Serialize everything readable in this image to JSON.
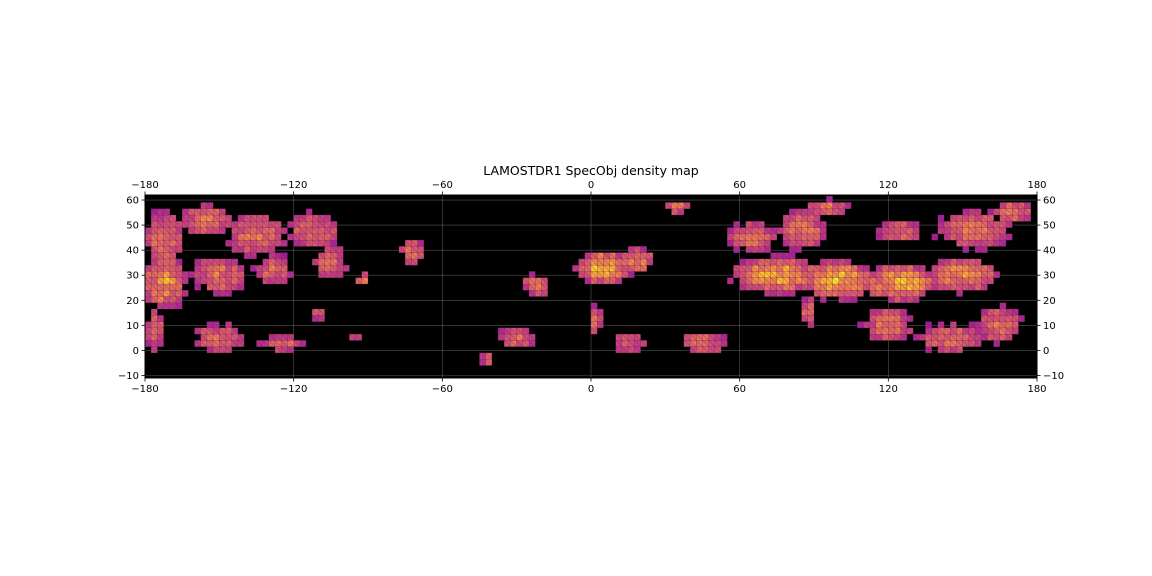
{
  "chart_data": {
    "type": "heatmap",
    "title": "LAMOSTDR1 SpecObj density map",
    "xlabel": "",
    "ylabel": "",
    "xlim": [
      -180,
      180
    ],
    "ylim": [
      -11,
      62
    ],
    "x_ticks": [
      -180,
      -120,
      -60,
      0,
      60,
      120,
      180
    ],
    "y_ticks": [
      -10,
      0,
      10,
      20,
      30,
      40,
      50,
      60
    ],
    "x_tick_labels": [
      "−180",
      "−120",
      "−60",
      "0",
      "60",
      "120",
      "180"
    ],
    "y_tick_labels": [
      "−10",
      "0",
      "10",
      "20",
      "30",
      "40",
      "50",
      "60"
    ],
    "grid": true,
    "background_color": "#000000",
    "colormap": "plasma",
    "colormap_stops": [
      "#5b02a3",
      "#9c179e",
      "#cc4778",
      "#ed7953",
      "#fdb42f",
      "#f0f921"
    ],
    "cell_size": 2.5,
    "regions": [
      {
        "x": -172,
        "y": 45,
        "dx": 10,
        "dy": 14,
        "level": 0.62
      },
      {
        "x": -155,
        "y": 52,
        "dx": 14,
        "dy": 8,
        "level": 0.6
      },
      {
        "x": -135,
        "y": 46,
        "dx": 16,
        "dy": 12,
        "level": 0.6
      },
      {
        "x": -112,
        "y": 48,
        "dx": 14,
        "dy": 10,
        "level": 0.58
      },
      {
        "x": -172,
        "y": 27,
        "dx": 10,
        "dy": 12,
        "level": 0.75
      },
      {
        "x": -150,
        "y": 30,
        "dx": 14,
        "dy": 10,
        "level": 0.6
      },
      {
        "x": -128,
        "y": 32,
        "dx": 10,
        "dy": 8,
        "level": 0.58
      },
      {
        "x": -105,
        "y": 35,
        "dx": 10,
        "dy": 10,
        "level": 0.55
      },
      {
        "x": -92,
        "y": 28,
        "dx": 4,
        "dy": 4,
        "level": 0.55
      },
      {
        "x": -72,
        "y": 39,
        "dx": 6,
        "dy": 6,
        "level": 0.62
      },
      {
        "x": -176,
        "y": 8,
        "dx": 5,
        "dy": 14,
        "level": 0.55
      },
      {
        "x": -150,
        "y": 5,
        "dx": 14,
        "dy": 8,
        "level": 0.58
      },
      {
        "x": -125,
        "y": 3,
        "dx": 12,
        "dy": 5,
        "level": 0.55
      },
      {
        "x": -110,
        "y": 15,
        "dx": 5,
        "dy": 4,
        "level": 0.52
      },
      {
        "x": -95,
        "y": 6,
        "dx": 3,
        "dy": 3,
        "level": 0.55
      },
      {
        "x": -30,
        "y": 5,
        "dx": 10,
        "dy": 6,
        "level": 0.58
      },
      {
        "x": -42,
        "y": -3,
        "dx": 3,
        "dy": 4,
        "level": 0.6
      },
      {
        "x": -22,
        "y": 26,
        "dx": 8,
        "dy": 6,
        "level": 0.58
      },
      {
        "x": 5,
        "y": 33,
        "dx": 12,
        "dy": 7,
        "level": 0.82
      },
      {
        "x": 18,
        "y": 36,
        "dx": 8,
        "dy": 6,
        "level": 0.72
      },
      {
        "x": 2,
        "y": 12,
        "dx": 4,
        "dy": 8,
        "level": 0.55
      },
      {
        "x": 15,
        "y": 3,
        "dx": 10,
        "dy": 6,
        "level": 0.55
      },
      {
        "x": 35,
        "y": 57,
        "dx": 6,
        "dy": 3,
        "level": 0.6
      },
      {
        "x": 45,
        "y": 3,
        "dx": 14,
        "dy": 6,
        "level": 0.58
      },
      {
        "x": 65,
        "y": 45,
        "dx": 12,
        "dy": 8,
        "level": 0.62
      },
      {
        "x": 85,
        "y": 48,
        "dx": 12,
        "dy": 10,
        "level": 0.62
      },
      {
        "x": 95,
        "y": 57,
        "dx": 12,
        "dy": 4,
        "level": 0.6
      },
      {
        "x": 75,
        "y": 30,
        "dx": 20,
        "dy": 8,
        "level": 0.8
      },
      {
        "x": 100,
        "y": 28,
        "dx": 16,
        "dy": 8,
        "level": 0.88
      },
      {
        "x": 125,
        "y": 27,
        "dx": 16,
        "dy": 8,
        "level": 0.82
      },
      {
        "x": 150,
        "y": 30,
        "dx": 16,
        "dy": 8,
        "level": 0.72
      },
      {
        "x": 125,
        "y": 47,
        "dx": 12,
        "dy": 6,
        "level": 0.6
      },
      {
        "x": 155,
        "y": 48,
        "dx": 20,
        "dy": 10,
        "level": 0.6
      },
      {
        "x": 170,
        "y": 55,
        "dx": 10,
        "dy": 6,
        "level": 0.6
      },
      {
        "x": 120,
        "y": 10,
        "dx": 14,
        "dy": 10,
        "level": 0.58
      },
      {
        "x": 145,
        "y": 5,
        "dx": 18,
        "dy": 8,
        "level": 0.58
      },
      {
        "x": 165,
        "y": 10,
        "dx": 12,
        "dy": 10,
        "level": 0.58
      },
      {
        "x": 88,
        "y": 15,
        "dx": 4,
        "dy": 8,
        "level": 0.6
      }
    ]
  }
}
